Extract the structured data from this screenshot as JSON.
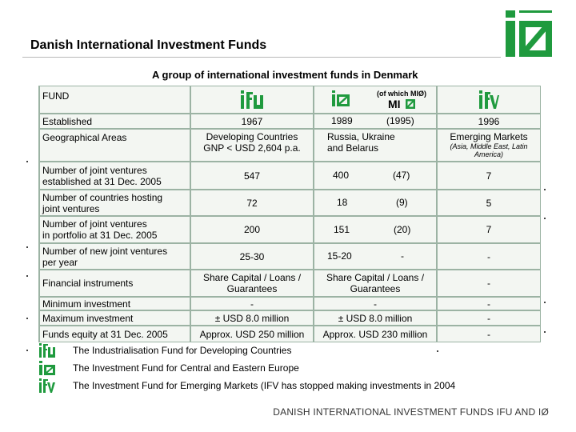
{
  "header": {
    "title": "Danish International Investment Funds"
  },
  "table": {
    "caption": "A group of international investment funds in Denmark",
    "fund_label": "FUND",
    "mio_note": "(of which MIØ)",
    "rows": {
      "established": {
        "label": "Established",
        "ifu": "1967",
        "io": "1989",
        "io_sub": "(1995)",
        "ifv": "1996"
      },
      "geo": {
        "label": "Geographical Areas",
        "ifu_1": "Developing Countries",
        "ifu_2": "GNP < USD 2,604 p.a.",
        "io_1": "Russia, Ukraine",
        "io_2": "and Belarus",
        "ifv_1": "Emerging Markets",
        "ifv_2": "(Asia, Middle East, Latin",
        "ifv_3": "America)"
      },
      "jv": {
        "label_1": "Number of joint ventures",
        "label_2": "established at 31 Dec. 2005",
        "ifu": "547",
        "io": "400",
        "io_sub": "(47)",
        "ifv": "7"
      },
      "countries": {
        "label_1": "Number of countries hosting",
        "label_2": "joint ventures",
        "ifu": "72",
        "io": "18",
        "io_sub": "(9)",
        "ifv": "5"
      },
      "portfolio": {
        "label_1": "Number of joint ventures",
        "label_2": "in portfolio at  31 Dec. 2005",
        "ifu": "200",
        "io": "151",
        "io_sub": "(20)",
        "ifv": "7"
      },
      "new_jv": {
        "label_1": "Number of new joint ventures",
        "label_2": "per year",
        "ifu": "25-30",
        "io": "15-20",
        "io_sub": "-",
        "ifv": "-"
      },
      "fin": {
        "label": "Financial instruments",
        "ifu_1": "Share Capital / Loans /",
        "ifu_2": "Guarantees",
        "io_1": "Share Capital / Loans /",
        "io_2": "Guarantees",
        "ifv": "-"
      },
      "min": {
        "label": "Minimum investment",
        "ifu": "-",
        "io": "-",
        "ifv": "-"
      },
      "max": {
        "label": "Maximum investment",
        "ifu": "± USD 8.0 million",
        "io": "± USD 8.0 million",
        "ifv": "-"
      },
      "equity": {
        "label": "Funds equity at 31 Dec.  2005",
        "ifu": "Approx. USD 250 million",
        "io": "Approx. USD 230 million",
        "ifv": "-"
      }
    }
  },
  "legend": [
    {
      "icon": "ifu-logo",
      "text": "The Industrialisation Fund for Developing Countries"
    },
    {
      "icon": "io-logo",
      "text": "The Investment Fund for Central and Eastern Europe"
    },
    {
      "icon": "ifv-logo",
      "text": "The Investment Fund for Emerging Markets (IFV has stopped making investments in 2004"
    }
  ],
  "footer": {
    "text": "DANISH INTERNATIONAL INVESTMENT FUNDS IFU AND IØ"
  },
  "colors": {
    "brand_green": "#1f9a3e",
    "grid_line": "#9cb3a4",
    "cell_bg": "#f3f6f2"
  }
}
